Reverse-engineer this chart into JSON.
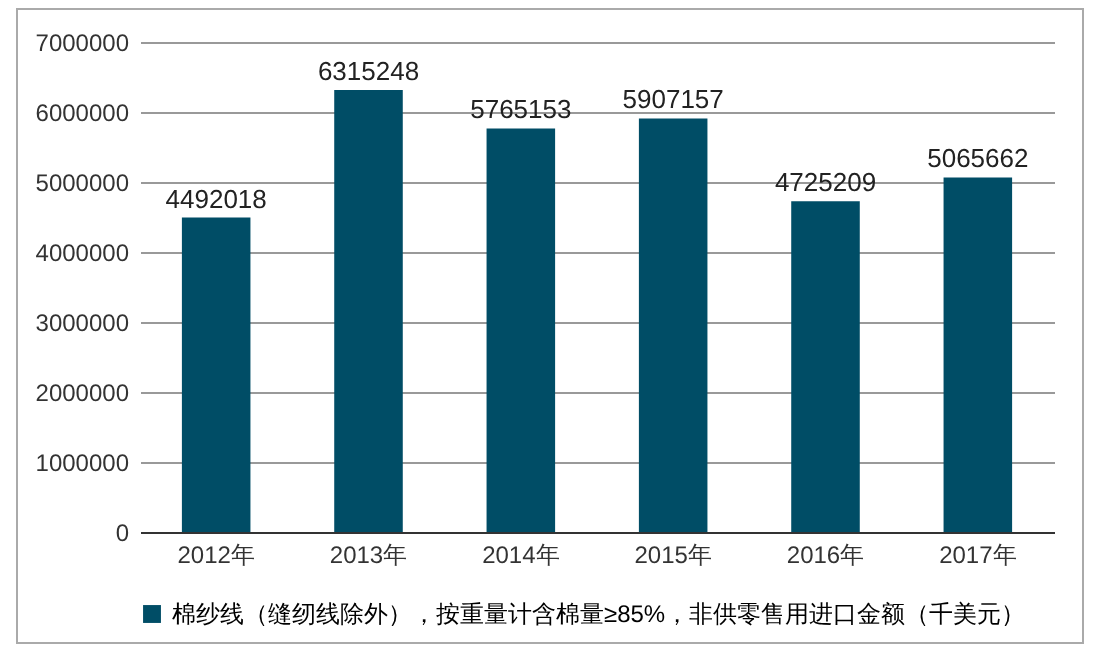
{
  "chart_data": {
    "type": "bar",
    "categories": [
      "2012年",
      "2013年",
      "2014年",
      "2015年",
      "2016年",
      "2017年"
    ],
    "series": [
      {
        "name": "棉纱线（缝纫线除外），按重量计含棉量≥85%，非供零售用进口金额（千美元）",
        "color": "#004d66",
        "values": [
          4492018,
          6315248,
          5765153,
          5907157,
          4725209,
          5065662
        ]
      }
    ],
    "ylim": [
      0,
      7000000
    ],
    "yticks": [
      0,
      1000000,
      2000000,
      3000000,
      4000000,
      5000000,
      6000000,
      7000000
    ],
    "grid": "y",
    "legend": "bottom",
    "data_labels": true
  }
}
